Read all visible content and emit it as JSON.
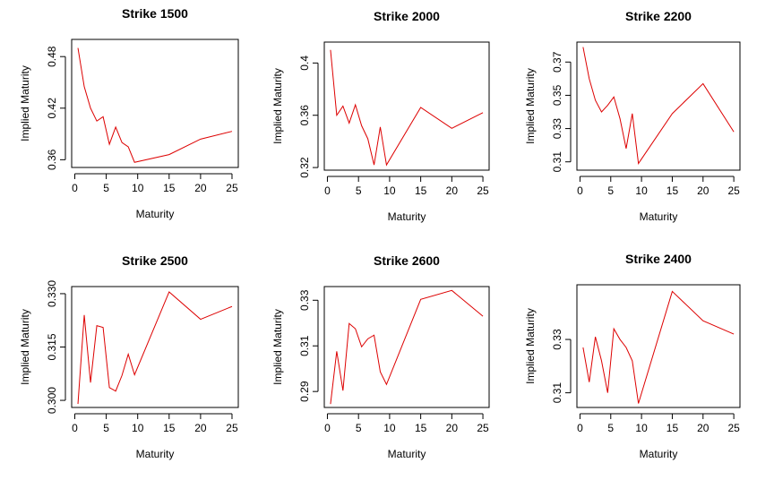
{
  "chart_data": [
    {
      "type": "line",
      "title": "Strike 1500",
      "x_label": "Maturity",
      "y_label": "Implied Maturity",
      "color": "#dd0000",
      "x": [
        0.5,
        1.5,
        2.5,
        3.5,
        4.5,
        5.5,
        6.5,
        7.5,
        8.5,
        9.5,
        15,
        20,
        25
      ],
      "values": [
        0.49,
        0.445,
        0.42,
        0.405,
        0.41,
        0.378,
        0.398,
        0.38,
        0.375,
        0.357,
        0.366,
        0.384,
        0.393
      ],
      "xlim": [
        -0.5,
        26
      ],
      "xticks": [
        0,
        5,
        10,
        15,
        20,
        25
      ],
      "ylim": [
        0.351,
        0.5
      ],
      "yticks": [
        0.36,
        0.42,
        0.48
      ]
    },
    {
      "type": "line",
      "title": "Strike 2000",
      "x_label": "Maturity",
      "y_label": "Implied Maturity",
      "color": "#dd0000",
      "x": [
        0.5,
        1.5,
        2.5,
        3.5,
        4.5,
        5.5,
        6.5,
        7.5,
        8.5,
        9.5,
        15,
        20,
        25
      ],
      "values": [
        0.41,
        0.36,
        0.367,
        0.354,
        0.368,
        0.352,
        0.342,
        0.322,
        0.351,
        0.322,
        0.366,
        0.35,
        0.362
      ],
      "xlim": [
        -0.5,
        26
      ],
      "xticks": [
        0,
        5,
        10,
        15,
        20,
        25
      ],
      "ylim": [
        0.318,
        0.416
      ],
      "yticks": [
        0.32,
        0.36,
        0.4
      ]
    },
    {
      "type": "line",
      "title": "Strike 2200",
      "x_label": "Maturity",
      "y_label": "Implied Maturity",
      "color": "#dd0000",
      "x": [
        0.5,
        1.5,
        2.5,
        3.5,
        4.5,
        5.5,
        6.5,
        7.5,
        8.5,
        9.5,
        15,
        20,
        25
      ],
      "values": [
        0.379,
        0.36,
        0.347,
        0.34,
        0.344,
        0.349,
        0.336,
        0.318,
        0.339,
        0.309,
        0.339,
        0.357,
        0.328
      ],
      "xlim": [
        -0.5,
        26
      ],
      "xticks": [
        0,
        5,
        10,
        15,
        20,
        25
      ],
      "ylim": [
        0.305,
        0.382
      ],
      "yticks": [
        0.31,
        0.33,
        0.35,
        0.37
      ]
    },
    {
      "type": "line",
      "title": "Strike 2500",
      "x_label": "Maturity",
      "y_label": "Implied Maturity",
      "color": "#dd0000",
      "x": [
        0.5,
        1.5,
        2.5,
        3.5,
        4.5,
        5.5,
        6.5,
        7.5,
        8.5,
        9.5,
        15,
        20,
        25
      ],
      "values": [
        0.299,
        0.324,
        0.305,
        0.321,
        0.3205,
        0.3036,
        0.3026,
        0.307,
        0.313,
        0.3072,
        0.3305,
        0.3228,
        0.3264
      ],
      "xlim": [
        -0.5,
        26
      ],
      "xticks": [
        0,
        5,
        10,
        15,
        20,
        25
      ],
      "ylim": [
        0.298,
        0.332
      ],
      "yticks": [
        {
          "value": 0.3,
          "label": "0.300"
        },
        0.315,
        {
          "value": 0.33,
          "label": "0.330"
        }
      ]
    },
    {
      "type": "line",
      "title": "Strike 2600",
      "x_label": "Maturity",
      "y_label": "Implied Maturity",
      "color": "#dd0000",
      "x": [
        0.5,
        1.5,
        2.5,
        3.5,
        4.5,
        5.5,
        6.5,
        7.5,
        8.5,
        9.5,
        15,
        20,
        25
      ],
      "values": [
        0.2845,
        0.3076,
        0.2904,
        0.3198,
        0.3175,
        0.3096,
        0.3131,
        0.3147,
        0.2986,
        0.2931,
        0.3304,
        0.3343,
        0.323
      ],
      "xlim": [
        -0.5,
        26
      ],
      "xticks": [
        0,
        5,
        10,
        15,
        20,
        25
      ],
      "ylim": [
        0.283,
        0.336
      ],
      "yticks": [
        0.29,
        0.31,
        0.33
      ]
    },
    {
      "type": "line",
      "title": "Strike 2400",
      "x_label": "Maturity",
      "y_label": "Implied Maturity",
      "color": "#dd0000",
      "x": [
        0.5,
        1.5,
        2.5,
        3.5,
        4.5,
        5.5,
        6.5,
        7.5,
        8.5,
        9.5,
        15,
        20,
        25
      ],
      "values": [
        0.327,
        0.314,
        0.331,
        0.322,
        0.31,
        0.334,
        0.33,
        0.327,
        0.322,
        0.306,
        0.348,
        0.337,
        0.332
      ],
      "xlim": [
        -0.5,
        26
      ],
      "xticks": [
        0,
        5,
        10,
        15,
        20,
        25
      ],
      "ylim": [
        0.3045,
        0.3505
      ],
      "yticks": [
        0.31,
        0.33
      ]
    }
  ]
}
